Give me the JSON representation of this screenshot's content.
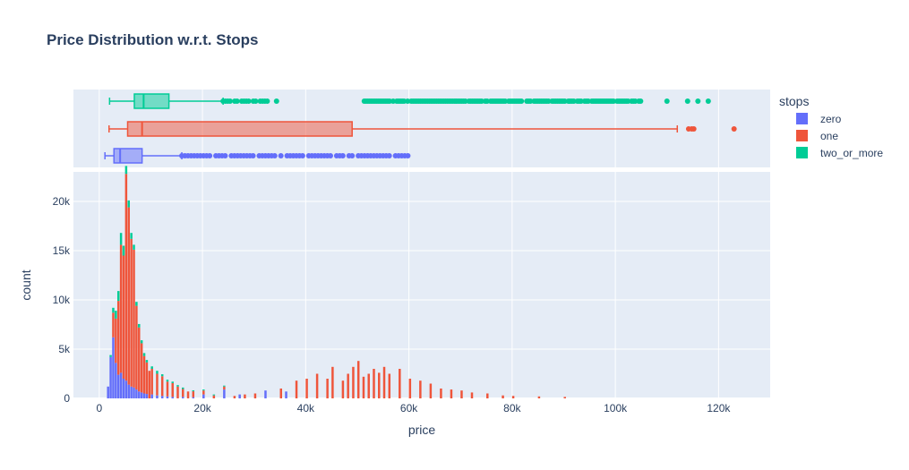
{
  "chart_data": {
    "type": "histogram",
    "title": "Price Distribution w.r.t. Stops",
    "xlabel": "price",
    "ylabel": "count",
    "x_ticks": [
      "0",
      "20k",
      "40k",
      "60k",
      "80k",
      "100k",
      "120k"
    ],
    "x_tick_values": [
      0,
      20000,
      40000,
      60000,
      80000,
      100000,
      120000
    ],
    "y_ticks": [
      "0",
      "5k",
      "10k",
      "15k",
      "20k"
    ],
    "y_tick_values": [
      0,
      5000,
      10000,
      15000,
      20000
    ],
    "xlim": [
      -5000,
      130000
    ],
    "ylim": [
      0,
      23000
    ],
    "legend": {
      "title": "stops",
      "placement": "right"
    },
    "series": [
      {
        "name": "zero",
        "color": "#636efa",
        "box": {
          "min": 1105,
          "q1": 2850,
          "median": 4050,
          "q3": 8300,
          "upper_fence": 16000
        },
        "outliers_range": [
          16000,
          60000
        ],
        "hist_x": [
          1500,
          2000,
          2500,
          3000,
          3500,
          4000,
          4500,
          5000,
          5500,
          6000,
          6500,
          7000,
          7500,
          8000,
          8500,
          9000,
          10000,
          11000,
          12000,
          13000,
          14000,
          16000,
          18000,
          20000,
          24000,
          27000,
          32000,
          36000
        ],
        "hist_y": [
          1200,
          4200,
          6200,
          3600,
          2400,
          2600,
          2000,
          1800,
          1400,
          1200,
          1100,
          900,
          700,
          600,
          500,
          450,
          400,
          300,
          250,
          200,
          150,
          150,
          120,
          400,
          900,
          400,
          800,
          700
        ]
      },
      {
        "name": "one",
        "color": "#ef553b",
        "box": {
          "min": 1900,
          "q1": 5500,
          "median": 8300,
          "q3": 49000,
          "upper_fence": 112000
        },
        "outliers_range": [
          114000,
          123000
        ],
        "hist_x": [
          2500,
          3000,
          3500,
          4000,
          4500,
          5000,
          5500,
          6000,
          6500,
          7000,
          7500,
          8000,
          8500,
          9000,
          9500,
          10000,
          11000,
          12000,
          13000,
          14000,
          15000,
          16000,
          17000,
          18000,
          20000,
          22000,
          24000,
          26000,
          28000,
          30000,
          35000,
          38000,
          40000,
          42000,
          44000,
          45000,
          47000,
          48000,
          49000,
          50000,
          51000,
          52000,
          53000,
          54000,
          55000,
          56000,
          58000,
          60000,
          62000,
          64000,
          66000,
          68000,
          70000,
          72000,
          75000,
          78000,
          80000,
          85000,
          90000
        ],
        "hist_y": [
          2500,
          4500,
          7500,
          13000,
          12500,
          21000,
          18000,
          15000,
          14000,
          8500,
          6500,
          5000,
          3800,
          3200,
          2800,
          2600,
          2200,
          2000,
          1500,
          1400,
          1200,
          800,
          700,
          600,
          400,
          300,
          300,
          250,
          400,
          500,
          1000,
          1800,
          2000,
          2500,
          2000,
          3200,
          1800,
          2500,
          3200,
          3800,
          2200,
          2500,
          3000,
          2600,
          3200,
          2500,
          3000,
          2000,
          1800,
          1500,
          1000,
          900,
          800,
          600,
          500,
          300,
          250,
          200,
          150
        ]
      },
      {
        "name": "two_or_more",
        "color": "#00cc96",
        "box": {
          "min": 2000,
          "q1": 6800,
          "median": 8600,
          "q3": 13500,
          "upper_fence": 24000
        },
        "outliers_range": [
          24000,
          118000
        ],
        "hist_x": [
          2000,
          2500,
          3000,
          3500,
          4000,
          4500,
          5000,
          5500,
          6000,
          6500,
          7000,
          7500,
          8000,
          8500,
          9000,
          10000,
          11000,
          12000,
          13000,
          14000,
          15000,
          16000,
          18000,
          20000,
          22000,
          24000
        ],
        "hist_y": [
          200,
          500,
          800,
          1000,
          1200,
          1000,
          800,
          700,
          600,
          500,
          400,
          350,
          300,
          300,
          250,
          250,
          300,
          200,
          200,
          150,
          150,
          150,
          100,
          100,
          100,
          100
        ]
      }
    ]
  }
}
